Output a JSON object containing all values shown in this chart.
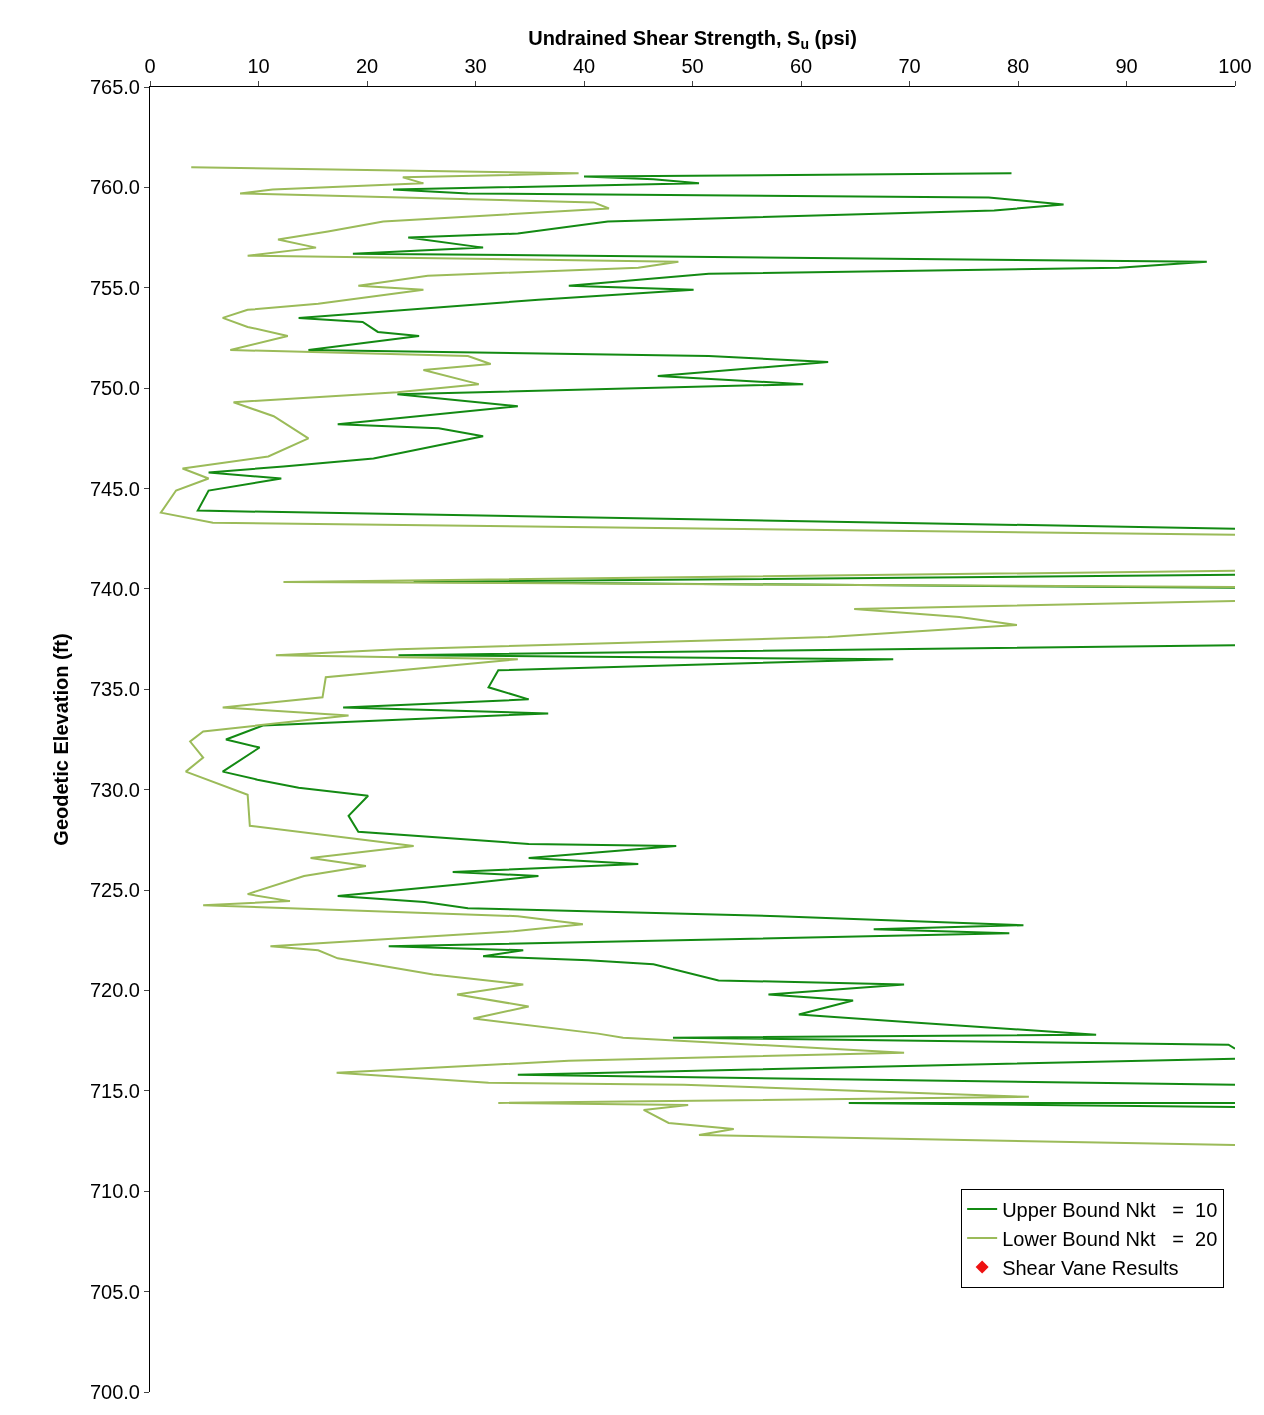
{
  "chart_data": {
    "type": "line",
    "xlabel": "Undrained Shear Strength, S$_{u}$ (psi)",
    "ylabel": "Geodetic Elevation (ft)",
    "xlim": [
      0,
      100
    ],
    "xticks": [
      0,
      10,
      20,
      30,
      40,
      50,
      60,
      70,
      80,
      90,
      100
    ],
    "ylim": [
      700,
      765
    ],
    "yticks": [
      {
        "value": 700,
        "label": "700.0"
      },
      {
        "value": 705,
        "label": "705.0"
      },
      {
        "value": 710,
        "label": "710.0"
      },
      {
        "value": 715,
        "label": "715.0"
      },
      {
        "value": 720,
        "label": "720.0"
      },
      {
        "value": 725,
        "label": "725.0"
      },
      {
        "value": 730,
        "label": "730.0"
      },
      {
        "value": 735,
        "label": "735.0"
      },
      {
        "value": 740,
        "label": "740.0"
      },
      {
        "value": 745,
        "label": "745.0"
      },
      {
        "value": 750,
        "label": "750.0"
      },
      {
        "value": 755,
        "label": "755.0"
      },
      {
        "value": 760,
        "label": "760.0"
      },
      {
        "value": 765,
        "label": "765.0"
      }
    ],
    "legend": "bottom right",
    "marker": "none",
    "line_style": "solid",
    "series": [
      {
        "name": "Upper Bound Nkt   =  10",
        "color": "#138a13",
        "x": [
          79.4,
          40,
          46.4,
          50.6,
          22.4,
          29.3,
          77.3,
          84.2,
          77.8,
          42.2,
          33.9,
          23.8,
          30.7,
          18.7,
          97.4,
          89.3,
          51.5,
          38.6,
          50.1,
          35.8,
          13.7,
          19.6,
          21,
          24.8,
          14.6,
          51.5,
          62.5,
          46.8,
          60.2,
          22.8,
          33.9,
          17.3,
          26.6,
          30.7,
          20.6,
          12.3,
          5.4,
          12.1,
          5.4,
          4.4,
          100,
          null,
          100,
          24.3,
          100,
          null,
          100,
          22.9,
          68.5,
          32.1,
          31.2,
          34.9,
          17.8,
          36.7,
          10.4,
          7,
          10.1,
          6.7,
          9.9,
          13.7,
          20.1,
          18.3,
          19.2,
          34.9,
          48.5,
          34.9,
          45.0,
          27.9,
          35.8,
          28.9,
          17.3,
          25.3,
          29.3,
          57.9,
          80.5,
          66.7,
          79.2,
          22,
          34.4,
          30.7,
          40.4,
          46.4,
          52.4,
          69.5,
          57,
          64.8,
          59.8,
          70.4,
          87.2,
          48.2,
          99.4,
          100,
          null,
          100,
          33.9,
          100,
          null,
          100,
          64.4,
          100
        ],
        "values": [
          760.7,
          760.54,
          760.4,
          760.2,
          759.9,
          759.7,
          759.5,
          759.15,
          758.85,
          758.3,
          757.7,
          757.5,
          757.0,
          756.7,
          756.3,
          756.0,
          755.7,
          755.1,
          754.9,
          754.4,
          753.5,
          753.3,
          752.8,
          752.6,
          751.9,
          751.6,
          751.3,
          750.6,
          750.2,
          749.7,
          749.1,
          748.2,
          748.0,
          747.6,
          746.5,
          746.1,
          745.8,
          745.5,
          744.9,
          743.9,
          743.0,
          null,
          740.7,
          740.35,
          740.06,
          null,
          737.2,
          736.7,
          736.5,
          735.95,
          735.1,
          734.5,
          734.1,
          733.8,
          733.2,
          732.5,
          732.1,
          730.9,
          730.5,
          730.1,
          729.7,
          728.7,
          727.9,
          727.3,
          727.2,
          726.6,
          726.3,
          725.9,
          725.7,
          725.3,
          724.7,
          724.4,
          724.1,
          723.7,
          723.25,
          723.05,
          722.85,
          722.2,
          722.0,
          721.7,
          721.5,
          721.3,
          720.5,
          720.3,
          719.8,
          719.5,
          718.8,
          718.4,
          717.8,
          717.65,
          717.3,
          717.1,
          null,
          716.6,
          715.8,
          715.3,
          null,
          714.4,
          714.4,
          714.2
        ]
      },
      {
        "name": "Lower Bound Nkt   =  20",
        "color": "#9bbb59",
        "x": [
          3.8,
          39.5,
          23.3,
          25.2,
          11.3,
          8.3,
          40.9,
          42.3,
          21.5,
          16.4,
          11.8,
          15.3,
          9,
          48.7,
          45,
          25.6,
          19.2,
          25.2,
          15.5,
          9,
          6.7,
          9,
          12.7,
          7.4,
          29.3,
          31.4,
          25.2,
          30.3,
          22.8,
          7.7,
          11.4,
          14.6,
          10.9,
          3,
          5.4,
          2.4,
          1,
          5.8,
          100,
          null,
          100,
          12.3,
          100,
          null,
          100,
          64.9,
          74.6,
          79.9,
          62.5,
          22.9,
          11.6,
          33.9,
          16.2,
          15.9,
          6.7,
          18.3,
          4.9,
          3.7,
          4.9,
          3.3,
          9,
          9.2,
          24.3,
          14.8,
          19.9,
          14.2,
          9,
          12.9,
          4.9,
          33.9,
          39.9,
          33.5,
          11.1,
          15.5,
          17.3,
          26.1,
          34.4,
          28.3,
          34.9,
          29.8,
          41.3,
          43.6,
          69.5,
          38.6,
          17.2,
          31.2,
          49.2,
          81,
          32.1,
          49.6,
          45.5,
          47.8,
          53.8,
          50.6,
          100
        ],
        "values": [
          761.0,
          760.7,
          760.5,
          760.2,
          759.9,
          759.7,
          759.25,
          758.95,
          758.3,
          757.8,
          757.4,
          757.0,
          756.6,
          756.3,
          756.0,
          755.6,
          755.1,
          754.9,
          754.2,
          753.9,
          753.5,
          753.05,
          752.6,
          751.9,
          751.6,
          751.2,
          750.9,
          750.2,
          749.8,
          749.3,
          748.6,
          747.5,
          746.6,
          746.0,
          745.5,
          744.9,
          743.8,
          743.3,
          742.7,
          null,
          740.9,
          740.35,
          740.1,
          null,
          739.4,
          739.0,
          738.6,
          738.2,
          737.6,
          737.0,
          736.7,
          736.5,
          735.6,
          734.6,
          734.1,
          733.7,
          732.9,
          732.4,
          731.6,
          730.9,
          729.75,
          728.2,
          727.2,
          726.6,
          726.2,
          725.7,
          724.8,
          724.45,
          724.25,
          723.7,
          723.3,
          722.95,
          722.2,
          722.0,
          721.6,
          720.8,
          720.3,
          719.8,
          719.2,
          718.6,
          717.85,
          717.65,
          716.9,
          716.5,
          715.9,
          715.4,
          715.3,
          714.7,
          714.4,
          714.3,
          714.05,
          713.4,
          713.1,
          712.8,
          712.3
        ]
      },
      {
        "name": "Shear Vane Results",
        "color": "#ee1111",
        "type": "scatter",
        "marker": "diamond"
      }
    ]
  }
}
